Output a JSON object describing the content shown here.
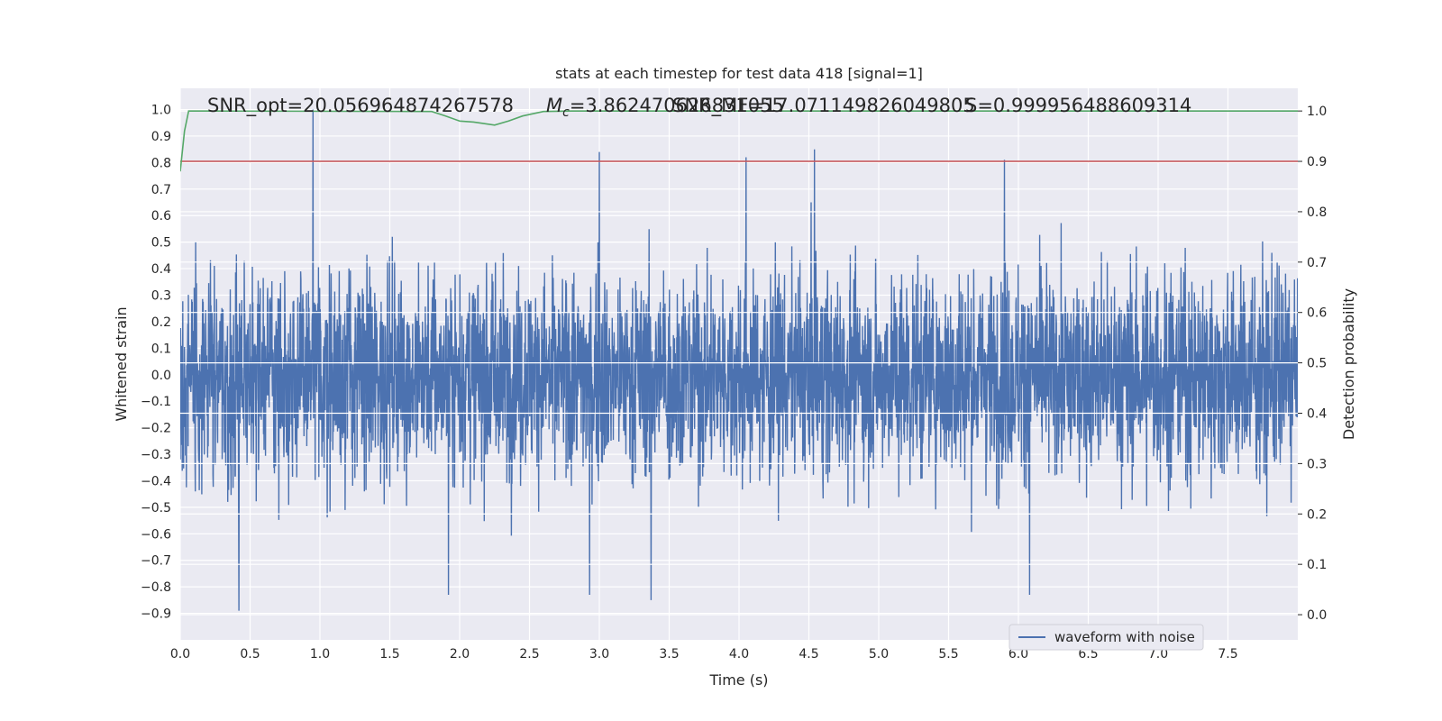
{
  "chart_data": {
    "type": "line",
    "title": "stats at each timestep for test data 418 [signal=1]",
    "xlabel": "Time (s)",
    "ylabel_left": "Whitened strain",
    "ylabel_right": "Detection probability",
    "xlim": [
      0.0,
      8.0
    ],
    "ylim_left": [
      -1.0,
      1.08
    ],
    "ylim_right": [
      -0.05,
      1.045
    ],
    "x_ticks": [
      0.0,
      0.5,
      1.0,
      1.5,
      2.0,
      2.5,
      3.0,
      3.5,
      4.0,
      4.5,
      5.0,
      5.5,
      6.0,
      6.5,
      7.0,
      7.5
    ],
    "x_tick_labels": [
      "0.0",
      "0.5",
      "1.0",
      "1.5",
      "2.0",
      "2.5",
      "3.0",
      "3.5",
      "4.0",
      "4.5",
      "5.0",
      "5.5",
      "6.0",
      "6.5",
      "7.0",
      "7.5"
    ],
    "y_left_ticks": [
      1.0,
      0.9,
      0.8,
      0.7,
      0.6,
      0.5,
      0.4,
      0.3,
      0.2,
      0.1,
      0.0,
      -0.1,
      -0.2,
      -0.3,
      -0.4,
      -0.5,
      -0.6,
      -0.7,
      -0.8,
      -0.9
    ],
    "y_left_tick_labels": [
      "1.0",
      "0.9",
      "0.8",
      "0.7",
      "0.6",
      "0.5",
      "0.4",
      "0.3",
      "0.2",
      "0.1",
      "0.0",
      "−0.1",
      "−0.2",
      "−0.3",
      "−0.4",
      "−0.5",
      "−0.6",
      "−0.7",
      "−0.8",
      "−0.9"
    ],
    "y_right_ticks": [
      1.0,
      0.9,
      0.8,
      0.7,
      0.6,
      0.5,
      0.4,
      0.3,
      0.2,
      0.1,
      0.0
    ],
    "y_right_tick_labels": [
      "1.0",
      "0.9",
      "0.8",
      "0.7",
      "0.6",
      "0.5",
      "0.4",
      "0.3",
      "0.2",
      "0.1",
      "0.0"
    ],
    "grid": true,
    "legend": {
      "position": "lower-right",
      "entries": [
        "waveform with noise"
      ]
    },
    "annotations": {
      "snr": "SNR_opt=20.056964874267578",
      "mc": "=3.862470626831055",
      "mc_symbol_main": "M",
      "mc_symbol_sub": "c",
      "snr_mf": "SNR_MF=17.071149826049805",
      "s": "S=0.999956488609314"
    },
    "series": [
      {
        "name": "waveform with noise",
        "axis": "left",
        "color": "#4c72b0",
        "style": "dense noise trace, approx. symmetric, envelope mostly between -0.6 and 0.7",
        "peaks": [
          {
            "x": 0.95,
            "y": 1.0
          },
          {
            "x": 3.0,
            "y": 0.84
          },
          {
            "x": 4.05,
            "y": 0.82
          },
          {
            "x": 4.54,
            "y": 0.85
          },
          {
            "x": 5.9,
            "y": 0.81
          },
          {
            "x": 0.42,
            "y": -0.89
          },
          {
            "x": 3.37,
            "y": -0.85
          },
          {
            "x": 2.93,
            "y": -0.83
          },
          {
            "x": 1.92,
            "y": -0.83
          },
          {
            "x": 6.08,
            "y": -0.83
          }
        ]
      },
      {
        "name": "",
        "axis": "right",
        "color": "#55a868",
        "x": [
          0.0,
          0.03,
          0.06,
          0.2,
          1.8,
          1.9,
          2.0,
          2.1,
          2.15,
          2.25,
          2.35,
          2.45,
          2.6,
          2.8,
          8.0
        ],
        "y": [
          0.88,
          0.96,
          1.0,
          1.0,
          0.999,
          0.99,
          0.98,
          0.978,
          0.976,
          0.972,
          0.98,
          0.99,
          0.999,
          1.0,
          1.0
        ]
      },
      {
        "name": "",
        "axis": "right",
        "color": "#c44e52",
        "x": [
          0.0,
          8.0
        ],
        "y": [
          0.9,
          0.9
        ]
      }
    ]
  }
}
